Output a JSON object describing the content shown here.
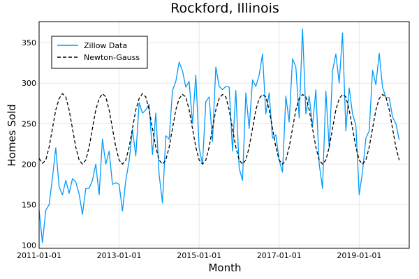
{
  "chart_data": {
    "type": "line",
    "title": "Rockford, Illinois",
    "xlabel": "Month",
    "ylabel": "Homes Sold",
    "x_start": "2011-01",
    "xlim": [
      "2011-01",
      "2020-04"
    ],
    "ylim": [
      96,
      376
    ],
    "grid": true,
    "legend_position": "top-left",
    "x_ticks": [
      "2011-01-01",
      "2013-01-01",
      "2015-01-01",
      "2017-01-01",
      "2019-01-01"
    ],
    "y_ticks": [
      100,
      150,
      200,
      250,
      300,
      350
    ],
    "series": [
      {
        "name": "Zillow Data",
        "color": "#009AFA",
        "style": "solid",
        "values": [
          143,
          103,
          143,
          150,
          183,
          220,
          172,
          162,
          180,
          164,
          182,
          178,
          163,
          138,
          170,
          170,
          180,
          200,
          162,
          231,
          200,
          216,
          175,
          177,
          175,
          142,
          180,
          204,
          243,
          210,
          276,
          263,
          267,
          274,
          212,
          263,
          187,
          152,
          235,
          231,
          291,
          302,
          326,
          315,
          295,
          302,
          250,
          310,
          220,
          200,
          277,
          283,
          228,
          320,
          296,
          292,
          296,
          295,
          216,
          291,
          195,
          180,
          288,
          244,
          304,
          296,
          310,
          336,
          262,
          288,
          232,
          236,
          205,
          190,
          284,
          252,
          330,
          320,
          257,
          367,
          262,
          284,
          247,
          292,
          200,
          170,
          290,
          220,
          315,
          336,
          300,
          362,
          241,
          294,
          262,
          248,
          162,
          191,
          232,
          241,
          316,
          298,
          337,
          295,
          282,
          282,
          258,
          250,
          230
        ]
      },
      {
        "name": "Newton-Gauss",
        "color": "#000000",
        "style": "dashed",
        "values": [
          207,
          201,
          205,
          221,
          244,
          267,
          281,
          287,
          283,
          267,
          244,
          221,
          205,
          200,
          205,
          221,
          244,
          267,
          281,
          287,
          283,
          267,
          244,
          221,
          205,
          200,
          205,
          221,
          244,
          267,
          281,
          287,
          283,
          267,
          244,
          221,
          205,
          200,
          205,
          221,
          244,
          267,
          281,
          286,
          283,
          267,
          244,
          221,
          205,
          200,
          205,
          221,
          244,
          267,
          281,
          286,
          283,
          267,
          244,
          221,
          205,
          200,
          205,
          221,
          244,
          267,
          281,
          286,
          283,
          267,
          244,
          221,
          205,
          200,
          205,
          221,
          244,
          267,
          281,
          286,
          283,
          267,
          244,
          221,
          205,
          200,
          205,
          221,
          244,
          267,
          281,
          286,
          283,
          267,
          244,
          221,
          205,
          200,
          205,
          221,
          244,
          267,
          281,
          286,
          283,
          267,
          244,
          221,
          205
        ]
      }
    ]
  }
}
